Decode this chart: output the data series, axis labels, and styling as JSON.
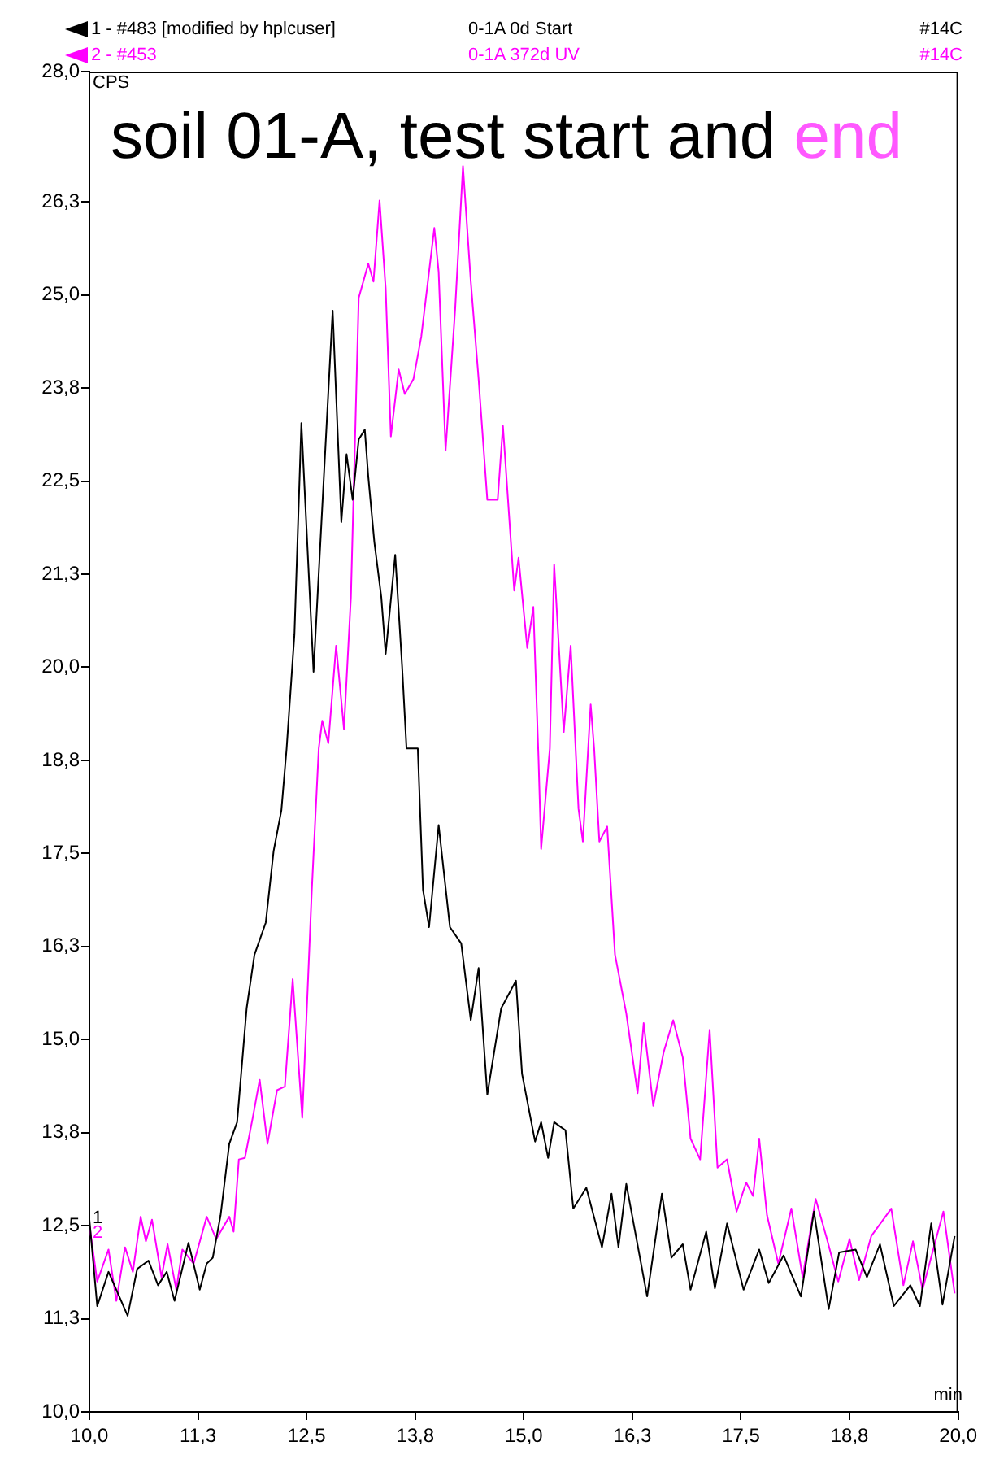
{
  "chart_data": {
    "type": "line",
    "title": "soil 01-A, test start and end",
    "xlabel": "min",
    "ylabel": "CPS",
    "legend": "top",
    "annotations": [
      "0-1A 0d Start",
      "#14C",
      "0-1A 372d UV",
      "#14C",
      {
        "text": "1",
        "x": 10,
        "y": 12.6
      },
      {
        "text": "2",
        "x": 10,
        "y": 12.4
      }
    ],
    "xlim": [
      10,
      20
    ],
    "ylim": [
      10,
      28
    ],
    "xticks": [
      {
        "value": 10,
        "label": "10,0"
      },
      {
        "value": 11.25,
        "label": "11,3"
      },
      {
        "value": 12.5,
        "label": "12,5"
      },
      {
        "value": 13.75,
        "label": "13,8"
      },
      {
        "value": 15,
        "label": "15,0"
      },
      {
        "value": 16.25,
        "label": "16,3"
      },
      {
        "value": 17.5,
        "label": "17,5"
      },
      {
        "value": 18.75,
        "label": "18,8"
      },
      {
        "value": 20,
        "label": "20,0"
      }
    ],
    "yticks": [
      {
        "value": 10,
        "label": "10,0"
      },
      {
        "value": 11.25,
        "label": "11,3"
      },
      {
        "value": 12.5,
        "label": "12,5"
      },
      {
        "value": 13.75,
        "label": "13,8"
      },
      {
        "value": 15,
        "label": "15,0"
      },
      {
        "value": 16.25,
        "label": "16,3"
      },
      {
        "value": 17.5,
        "label": "17,5"
      },
      {
        "value": 18.75,
        "label": "18,8"
      },
      {
        "value": 20,
        "label": "20,0"
      },
      {
        "value": 21.25,
        "label": "21,3"
      },
      {
        "value": 22.5,
        "label": "22,5"
      },
      {
        "value": 23.75,
        "label": "23,8"
      },
      {
        "value": 25,
        "label": "25,0"
      },
      {
        "value": 26.25,
        "label": "26,3"
      },
      {
        "value": 28,
        "label": "28,0"
      }
    ],
    "marker": "none",
    "line_style": "solid",
    "series": [
      {
        "name": "1 - #483 [modified by hplcuser]",
        "color": "#000000",
        "x": [
          10.0,
          10.09,
          10.22,
          10.44,
          10.55,
          10.68,
          10.79,
          10.89,
          10.98,
          11.14,
          11.27,
          11.35,
          11.42,
          11.51,
          11.61,
          11.7,
          11.81,
          11.9,
          12.03,
          12.12,
          12.21,
          12.27,
          12.36,
          12.44,
          12.58,
          12.8,
          12.9,
          12.96,
          13.03,
          13.1,
          13.17,
          13.21,
          13.28,
          13.36,
          13.41,
          13.52,
          13.6,
          13.65,
          13.78,
          13.84,
          13.91,
          14.02,
          14.15,
          14.28,
          14.39,
          14.48,
          14.58,
          14.74,
          14.91,
          14.98,
          15.13,
          15.2,
          15.28,
          15.35,
          15.48,
          15.57,
          15.72,
          15.9,
          16.01,
          16.09,
          16.18,
          16.42,
          16.59,
          16.7,
          16.83,
          16.92,
          17.1,
          17.2,
          17.34,
          17.53,
          17.71,
          17.82,
          17.99,
          18.19,
          18.34,
          18.51,
          18.63,
          18.82,
          18.95,
          19.1,
          19.26,
          19.45,
          19.56,
          19.69,
          19.82,
          19.96
        ],
        "values": [
          12.58,
          11.42,
          11.88,
          11.29,
          11.92,
          12.03,
          11.7,
          11.88,
          11.49,
          12.27,
          11.64,
          11.99,
          12.07,
          12.64,
          13.6,
          13.89,
          15.42,
          16.14,
          16.57,
          17.53,
          18.08,
          18.91,
          20.44,
          23.28,
          19.94,
          24.79,
          21.95,
          22.86,
          22.25,
          23.06,
          23.19,
          22.56,
          21.68,
          20.94,
          20.18,
          21.51,
          20.0,
          18.91,
          18.91,
          17.01,
          16.51,
          17.88,
          16.51,
          16.29,
          15.26,
          15.96,
          14.26,
          15.42,
          15.79,
          14.54,
          13.63,
          13.89,
          13.41,
          13.89,
          13.78,
          12.73,
          13.01,
          12.21,
          12.93,
          12.21,
          13.06,
          11.55,
          12.93,
          12.07,
          12.25,
          11.64,
          12.42,
          11.66,
          12.53,
          11.64,
          12.18,
          11.73,
          12.1,
          11.55,
          12.69,
          11.38,
          12.14,
          12.18,
          11.81,
          12.25,
          11.42,
          11.7,
          11.42,
          12.53,
          11.44,
          12.36
        ]
      },
      {
        "name": "2 - #453",
        "color": "#ff00ff",
        "x": [
          10.0,
          10.09,
          10.22,
          10.31,
          10.41,
          10.5,
          10.59,
          10.65,
          10.72,
          10.83,
          10.9,
          11.0,
          11.07,
          11.2,
          11.35,
          11.46,
          11.61,
          11.66,
          11.72,
          11.79,
          11.88,
          11.96,
          12.05,
          12.16,
          12.25,
          12.34,
          12.45,
          12.56,
          12.64,
          12.68,
          12.75,
          12.84,
          12.93,
          13.01,
          13.1,
          13.21,
          13.27,
          13.34,
          13.41,
          13.47,
          13.56,
          13.63,
          13.73,
          13.82,
          13.97,
          14.02,
          14.1,
          14.21,
          14.3,
          14.39,
          14.48,
          14.58,
          14.7,
          14.76,
          14.89,
          14.94,
          15.04,
          15.11,
          15.17,
          15.2,
          15.3,
          15.35,
          15.46,
          15.54,
          15.63,
          15.68,
          15.77,
          15.81,
          15.87,
          15.96,
          16.05,
          16.18,
          16.31,
          16.38,
          16.49,
          16.61,
          16.72,
          16.83,
          16.92,
          17.03,
          17.14,
          17.23,
          17.34,
          17.45,
          17.56,
          17.64,
          17.71,
          17.8,
          17.93,
          18.08,
          18.21,
          18.36,
          18.49,
          18.62,
          18.75,
          18.86,
          19.0,
          19.23,
          19.37,
          19.48,
          19.59,
          19.83,
          19.96
        ],
        "values": [
          12.51,
          11.75,
          12.18,
          11.49,
          12.21,
          11.88,
          12.62,
          12.29,
          12.58,
          11.81,
          12.25,
          11.64,
          12.18,
          11.99,
          12.62,
          12.32,
          12.62,
          12.42,
          13.39,
          13.41,
          13.95,
          14.46,
          13.6,
          14.32,
          14.37,
          15.81,
          13.95,
          17.01,
          18.91,
          19.28,
          18.98,
          20.29,
          19.17,
          20.94,
          24.96,
          25.42,
          25.18,
          26.27,
          25.09,
          23.1,
          24.0,
          23.67,
          23.87,
          24.44,
          25.9,
          25.31,
          22.91,
          24.81,
          26.73,
          25.18,
          23.87,
          22.25,
          22.25,
          23.24,
          21.03,
          21.47,
          20.26,
          20.81,
          18.76,
          17.56,
          18.91,
          21.38,
          19.13,
          20.29,
          18.1,
          17.66,
          19.5,
          18.91,
          17.66,
          17.86,
          16.14,
          15.35,
          14.28,
          15.22,
          14.11,
          14.83,
          15.26,
          14.76,
          13.67,
          13.39,
          15.13,
          13.28,
          13.39,
          12.69,
          13.08,
          12.9,
          13.67,
          12.64,
          11.99,
          12.73,
          11.81,
          12.86,
          12.32,
          11.75,
          12.32,
          11.77,
          12.36,
          12.73,
          11.7,
          12.29,
          11.64,
          12.69,
          11.59
        ]
      }
    ]
  }
}
